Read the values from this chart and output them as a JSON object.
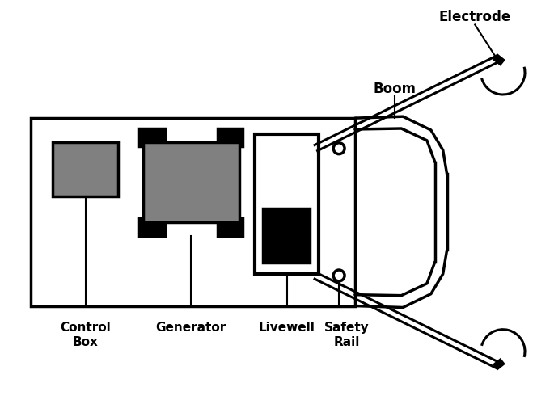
{
  "bg_color": "#ffffff",
  "line_color": "#000000",
  "gray_color": "#808080",
  "fig_width": 6.85,
  "fig_height": 4.95,
  "dpi": 100,
  "labels": {
    "control_box": "Control\nBox",
    "generator": "Generator",
    "livewell": "Livewell",
    "safety_rail": "Safety\nRail",
    "boom": "Boom",
    "electrode": "Electrode"
  }
}
